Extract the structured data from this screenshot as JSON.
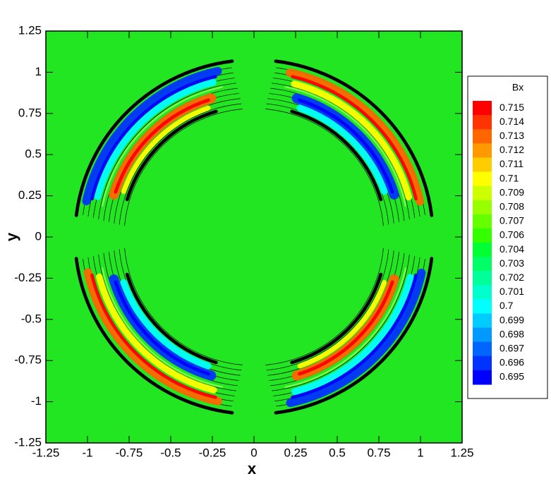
{
  "chart_data": {
    "type": "contour",
    "x_label": "x",
    "y_label": "y",
    "xlim": [
      -1.25,
      1.25
    ],
    "ylim": [
      -1.25,
      1.25
    ],
    "xticks": [
      -1.25,
      -1,
      -0.75,
      -0.5,
      -0.25,
      0,
      0.25,
      0.5,
      0.75,
      1,
      1.25
    ],
    "yticks": [
      -1.25,
      -1,
      -0.75,
      -0.5,
      -0.25,
      0,
      0.25,
      0.5,
      0.75,
      1,
      1.25
    ],
    "background_color": "#22e622",
    "legend_title": "Bx",
    "levels": [
      0.715,
      0.714,
      0.713,
      0.712,
      0.711,
      0.71,
      0.709,
      0.708,
      0.707,
      0.706,
      0.704,
      0.703,
      0.702,
      0.701,
      0.7,
      0.699,
      0.698,
      0.697,
      0.696,
      0.695
    ],
    "level_colors": [
      "#ff0000",
      "#ff3300",
      "#ff6600",
      "#ff9900",
      "#ffcc00",
      "#ffff00",
      "#ccff00",
      "#99ff00",
      "#66ff00",
      "#33ff00",
      "#00ff33",
      "#00ff66",
      "#00ff99",
      "#00ffcc",
      "#00ffff",
      "#00ccff",
      "#0099ff",
      "#0066ff",
      "#0033ff",
      "#0000ff"
    ],
    "legend_position": "right"
  }
}
